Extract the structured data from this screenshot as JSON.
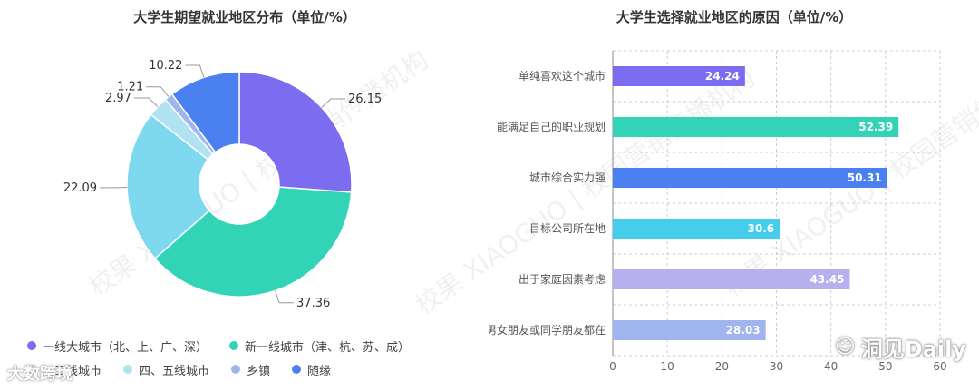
{
  "watermark": {
    "text": "校果 XIAOGUO | 校园营销传播机构"
  },
  "brand_left": {
    "text": "大数跨境"
  },
  "brand_right": {
    "text": "洞见Daily"
  },
  "chart_data": [
    {
      "type": "pie",
      "title": "大学生期望就业地区分布（单位/%）",
      "categories": [
        "一线大城市（北、上、广、深）",
        "新一线城市（津、杭、苏、成）",
        "二三线城市",
        "四、五线城市",
        "乡镇",
        "随缘"
      ],
      "values": [
        26.15,
        37.36,
        22.09,
        2.97,
        1.21,
        10.22
      ],
      "labels": [
        "26.15",
        "37.36",
        "22.09",
        "2.97",
        "1.21",
        "10.22"
      ],
      "colors": [
        "#7b6cf0",
        "#33d3b8",
        "#7dd8f0",
        "#b0e3ef",
        "#a0b4ee",
        "#4a80f0"
      ],
      "legend_position": "bottom"
    },
    {
      "type": "bar",
      "orientation": "horizontal",
      "title": "大学生选择就业地区的原因（单位/%）",
      "categories": [
        "单纯喜欢这个城市",
        "能满足自己的职业规划",
        "城市综合实力强",
        "目标公司所在地",
        "出于家庭因素考虑",
        "男女朋友或同学朋友都在"
      ],
      "values": [
        24.24,
        52.39,
        50.31,
        30.6,
        43.45,
        28.03
      ],
      "labels": [
        "24.24",
        "52.39",
        "50.31",
        "30.6",
        "43.45",
        "28.03"
      ],
      "colors": [
        "#7b6cf0",
        "#33d3b8",
        "#4a80f0",
        "#45cdeb",
        "#b6b0ee",
        "#a0b4ee"
      ],
      "xlim": [
        0,
        60
      ],
      "xticks": [
        "0",
        "10",
        "20",
        "30",
        "40",
        "50",
        "60"
      ],
      "grid": true
    }
  ]
}
